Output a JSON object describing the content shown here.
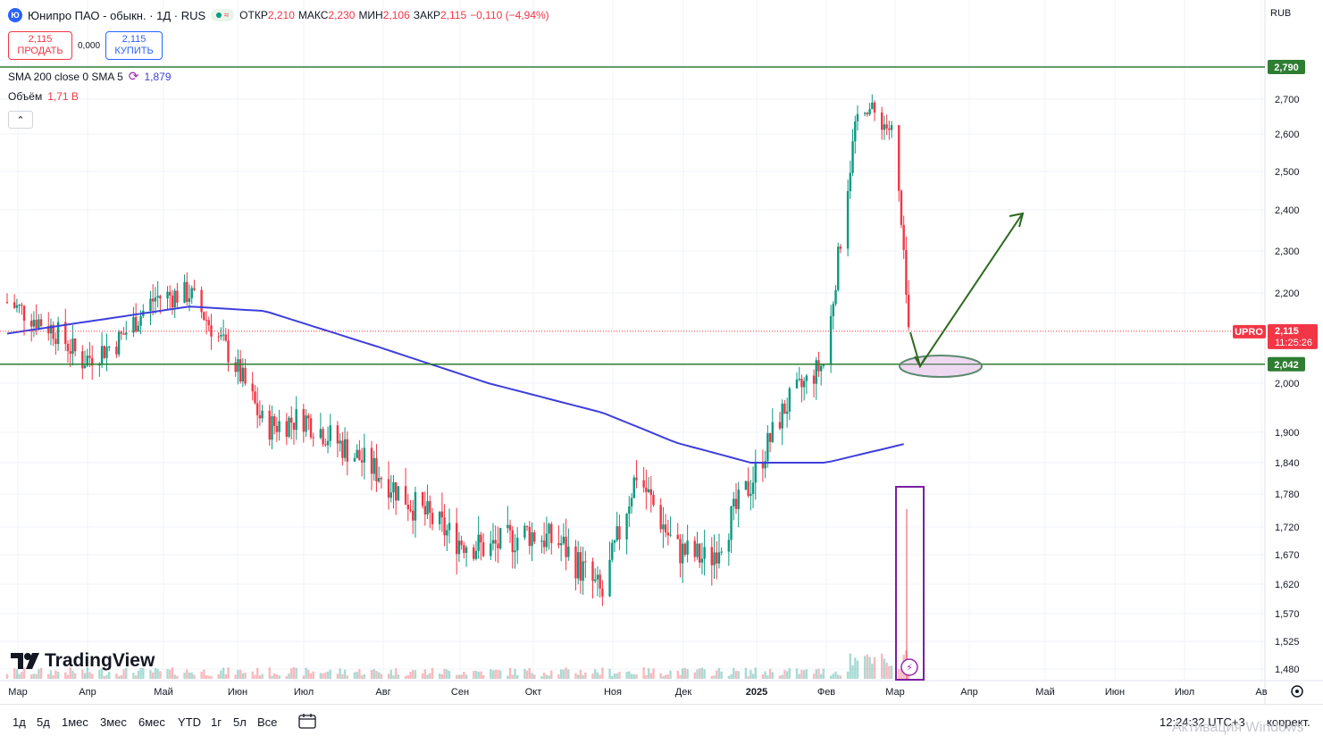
{
  "header": {
    "logo_letter": "Ю",
    "symbol_title": "Юнипро ПАО - обыкн. · 1Д · RUS",
    "status_glyph": "≈",
    "ohlc": [
      {
        "label": "ОТКР",
        "value": "2,210"
      },
      {
        "label": "МАКС",
        "value": "2,230"
      },
      {
        "label": "МИН",
        "value": "2,106"
      },
      {
        "label": "ЗАКР",
        "value": "2,115"
      },
      {
        "label": "",
        "value": "−0,110 (−4,94%)"
      }
    ]
  },
  "trade": {
    "sell_price": "2,115",
    "sell_label": "ПРОДАТЬ",
    "spread": "0,000",
    "buy_price": "2,115",
    "buy_label": "КУПИТЬ"
  },
  "indicators": {
    "sma_label": "SMA 200 close 0 SMA 5",
    "sma_value": "1,879",
    "volume_label": "Объём",
    "volume_value": "1,71 B",
    "collapse_glyph": "⌃"
  },
  "currency": "RUB",
  "brand": "TradingView",
  "bottom": {
    "ranges": [
      "1д",
      "5д",
      "1мес",
      "3мес",
      "6мес",
      "YTD",
      "1г",
      "5л",
      "Все"
    ],
    "time": "12:24:32 UTC+3",
    "adjust": "коррект.",
    "watermark": "Активация Windows"
  },
  "colors": {
    "up": "#089981",
    "down": "#f23645",
    "sma": "#3f3fdd",
    "level": "#2e7d32",
    "arrow": "#2d6a1e",
    "box": "#7b1fa2"
  },
  "chart_data": {
    "type": "candlestick",
    "symbol": "UPRO",
    "y_axis_ticks": [
      2.7,
      2.6,
      2.5,
      2.4,
      2.3,
      2.2,
      2.0,
      1.9,
      1.84,
      1.78,
      1.72,
      1.67,
      1.62,
      1.57,
      1.525,
      1.48
    ],
    "y_axis_tick_labels": [
      "2,700",
      "2,600",
      "2,500",
      "2,400",
      "2,300",
      "2,200",
      "2,000",
      "1,900",
      "1,840",
      "1,780",
      "1,720",
      "1,670",
      "1,620",
      "1,570",
      "1,525",
      "1,480"
    ],
    "x_axis_labels": [
      "Мар",
      "Апр",
      "Май",
      "Июн",
      "Июл",
      "Авг",
      "Сен",
      "Окт",
      "Ноя",
      "Дек",
      "2025",
      "Фев",
      "Мар",
      "Апр",
      "Май",
      "Июн",
      "Июл",
      "Ав"
    ],
    "price_path": [
      [
        "2024-03-01",
        2.18
      ],
      [
        "2024-03-20",
        2.12
      ],
      [
        "2024-04-01",
        2.05
      ],
      [
        "2024-04-15",
        2.09
      ],
      [
        "2024-05-01",
        2.19
      ],
      [
        "2024-05-15",
        2.2
      ],
      [
        "2024-06-01",
        2.06
      ],
      [
        "2024-06-15",
        1.91
      ],
      [
        "2024-07-01",
        1.93
      ],
      [
        "2024-07-15",
        1.88
      ],
      [
        "2024-08-01",
        1.82
      ],
      [
        "2024-08-15",
        1.76
      ],
      [
        "2024-09-01",
        1.7
      ],
      [
        "2024-09-15",
        1.68
      ],
      [
        "2024-10-01",
        1.71
      ],
      [
        "2024-10-15",
        1.69
      ],
      [
        "2024-11-01",
        1.6
      ],
      [
        "2024-11-15",
        1.82
      ],
      [
        "2024-12-01",
        1.68
      ],
      [
        "2024-12-15",
        1.66
      ],
      [
        "2025-01-01",
        1.8
      ],
      [
        "2025-01-15",
        1.95
      ],
      [
        "2025-02-01",
        2.05
      ],
      [
        "2025-02-15",
        2.7
      ],
      [
        "2025-03-01",
        2.6
      ],
      [
        "2025-03-07",
        2.11
      ]
    ],
    "sma_200_path": [
      [
        "2024-03-01",
        2.11
      ],
      [
        "2024-05-15",
        2.17
      ],
      [
        "2024-06-15",
        2.16
      ],
      [
        "2024-08-01",
        2.08
      ],
      [
        "2024-09-15",
        2.0
      ],
      [
        "2024-11-01",
        1.94
      ],
      [
        "2024-12-01",
        1.88
      ],
      [
        "2025-01-01",
        1.84
      ],
      [
        "2025-02-01",
        1.84
      ],
      [
        "2025-03-07",
        1.879
      ]
    ],
    "last_price": {
      "value": 2.115,
      "label": "2,115",
      "countdown": "11:25:26",
      "tag": "UPRO"
    },
    "horizontal_levels": [
      {
        "value": 2.79,
        "label": "2,790"
      },
      {
        "value": 2.042,
        "label": "2,042"
      }
    ],
    "annotations": [
      {
        "type": "arrow",
        "from": [
          "2025-03-07",
          2.11
        ],
        "to": [
          "2025-03-10",
          2.042
        ]
      },
      {
        "type": "arrow",
        "from": [
          "2025-03-10",
          2.042
        ],
        "to": [
          "2025-04-10",
          2.4
        ]
      },
      {
        "type": "ellipse",
        "center": [
          "2025-03-20",
          2.042
        ]
      },
      {
        "type": "rectangle",
        "label": "volume spike",
        "x_range": [
          "2025-03-01",
          "2025-03-10"
        ]
      }
    ],
    "volume": {
      "last": "1,71 B"
    }
  }
}
